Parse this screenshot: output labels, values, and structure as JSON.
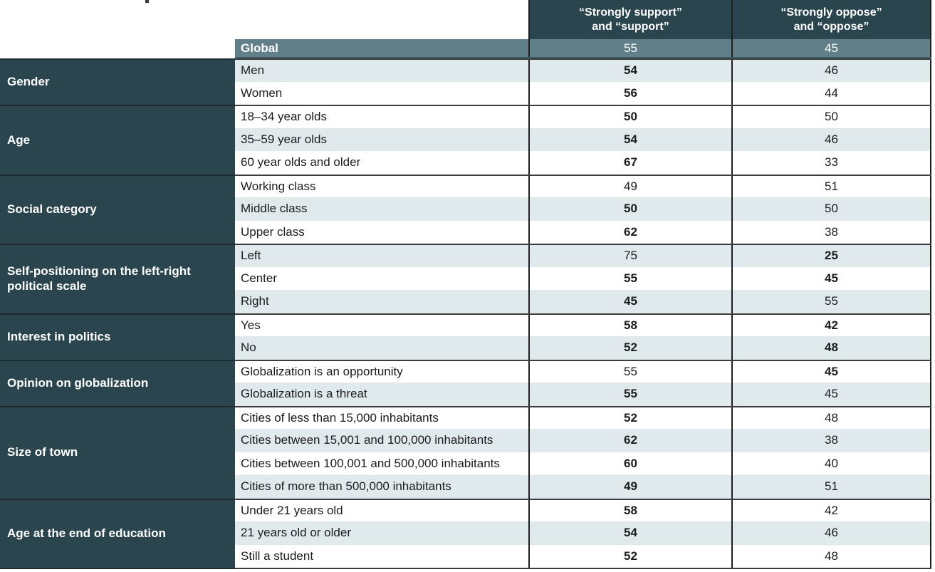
{
  "chart_data": {
    "type": "table",
    "title": "",
    "columns": [
      "“Strongly support” and “support”",
      "“Strongly oppose” and “oppose”"
    ],
    "header": {
      "support_line1": "“Strongly support”",
      "support_line2": "and “support”",
      "oppose_line1": "“Strongly oppose”",
      "oppose_line2": "and “oppose”"
    },
    "global": {
      "label": "Global",
      "support": "55",
      "oppose": "45"
    },
    "groups": [
      {
        "category": "Gender",
        "rows": [
          {
            "label": "Men",
            "support": "54",
            "oppose": "46",
            "support_bold": true,
            "oppose_bold": false
          },
          {
            "label": "Women",
            "support": "56",
            "oppose": "44",
            "support_bold": true,
            "oppose_bold": false
          }
        ]
      },
      {
        "category": "Age",
        "rows": [
          {
            "label": "18–34 year olds",
            "support": "50",
            "oppose": "50",
            "support_bold": true,
            "oppose_bold": false
          },
          {
            "label": "35–59 year olds",
            "support": "54",
            "oppose": "46",
            "support_bold": true,
            "oppose_bold": false
          },
          {
            "label": "60 year olds and older",
            "support": "67",
            "oppose": "33",
            "support_bold": true,
            "oppose_bold": false
          }
        ]
      },
      {
        "category": "Social category",
        "rows": [
          {
            "label": "Working class",
            "support": "49",
            "oppose": "51",
            "support_bold": false,
            "oppose_bold": false
          },
          {
            "label": "Middle class",
            "support": "50",
            "oppose": "50",
            "support_bold": true,
            "oppose_bold": false
          },
          {
            "label": "Upper class",
            "support": "62",
            "oppose": "38",
            "support_bold": true,
            "oppose_bold": false
          }
        ]
      },
      {
        "category": "Self-positioning on the left-right political scale",
        "rows": [
          {
            "label": "Left",
            "support": "75",
            "oppose": "25",
            "support_bold": false,
            "oppose_bold": true
          },
          {
            "label": "Center",
            "support": "55",
            "oppose": "45",
            "support_bold": true,
            "oppose_bold": true
          },
          {
            "label": "Right",
            "support": "45",
            "oppose": "55",
            "support_bold": true,
            "oppose_bold": false
          }
        ]
      },
      {
        "category": "Interest in politics",
        "rows": [
          {
            "label": "Yes",
            "support": "58",
            "oppose": "42",
            "support_bold": true,
            "oppose_bold": true
          },
          {
            "label": "No",
            "support": "52",
            "oppose": "48",
            "support_bold": true,
            "oppose_bold": true
          }
        ]
      },
      {
        "category": "Opinion on globalization",
        "rows": [
          {
            "label": "Globalization is an opportunity",
            "support": "55",
            "oppose": "45",
            "support_bold": false,
            "oppose_bold": true
          },
          {
            "label": "Globalization is a threat",
            "support": "55",
            "oppose": "45",
            "support_bold": true,
            "oppose_bold": false
          }
        ]
      },
      {
        "category": "Size of town",
        "rows": [
          {
            "label": "Cities of less than 15,000 inhabitants",
            "support": "52",
            "oppose": "48",
            "support_bold": true,
            "oppose_bold": false
          },
          {
            "label": "Cities between 15,001 and 100,000 inhabitants",
            "support": "62",
            "oppose": "38",
            "support_bold": true,
            "oppose_bold": false
          },
          {
            "label": "Cities between 100,001 and 500,000 inhabitants",
            "support": "60",
            "oppose": "40",
            "support_bold": true,
            "oppose_bold": false
          },
          {
            "label": "Cities of more than 500,000 inhabitants",
            "support": "49",
            "oppose": "51",
            "support_bold": true,
            "oppose_bold": false
          }
        ]
      },
      {
        "category": "Age at the end of education",
        "rows": [
          {
            "label": "Under 21 years old",
            "support": "58",
            "oppose": "42",
            "support_bold": true,
            "oppose_bold": false
          },
          {
            "label": "21 years old or older",
            "support": "54",
            "oppose": "46",
            "support_bold": true,
            "oppose_bold": false
          },
          {
            "label": "Still a student",
            "support": "52",
            "oppose": "48",
            "support_bold": true,
            "oppose_bold": false
          }
        ]
      }
    ]
  },
  "colors": {
    "header_bg": "#2a454e",
    "category_bg": "#2a454e",
    "global_bg": "#617f88",
    "alt_row_bg": "#e0eaed",
    "row_bg": "#ffffff",
    "group_rule": "#3d3d3d",
    "column_rule": "#1f1f1f",
    "text": "#1c1c1c",
    "inverse_text": "#ffffff"
  }
}
